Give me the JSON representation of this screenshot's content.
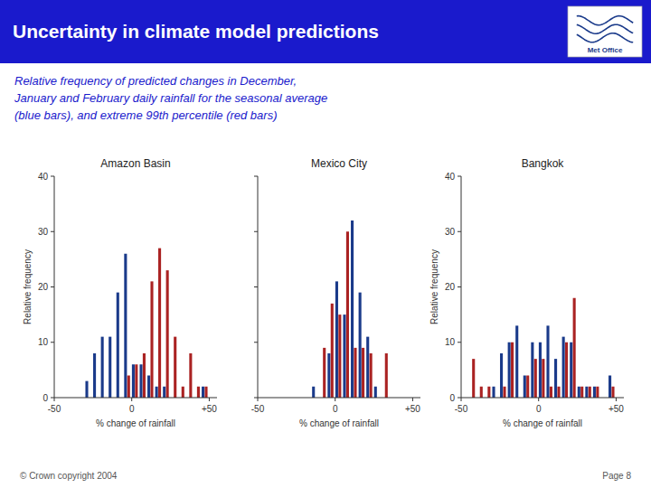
{
  "title": "Uncertainty in climate model predictions",
  "subtitle": "Relative frequency of predicted changes in December,\nJanuary and February daily rainfall for the seasonal average\n(blue bars), and extreme 99th percentile (red bars)",
  "annotations": [
    "Met Office",
    "© Crown copyright 2004",
    "Page 8"
  ],
  "chart_data": [
    {
      "type": "bar",
      "title": "Amazon Basin",
      "xlabel": "% change of rainfall",
      "ylabel": "Relative frequency",
      "x": [
        -40,
        -35,
        -30,
        -25,
        -20,
        -15,
        -10,
        -5,
        0,
        5,
        10,
        15,
        20,
        25,
        30,
        35,
        40,
        45
      ],
      "series": [
        {
          "color": "#1a3a8a",
          "values": [
            0,
            0,
            3,
            8,
            11,
            11,
            19,
            26,
            6,
            6,
            4,
            2,
            2,
            0,
            0,
            0,
            0,
            2
          ]
        },
        {
          "color": "#aa2222",
          "values": [
            0,
            0,
            0,
            0,
            0,
            0,
            0,
            4,
            6,
            8,
            21,
            27,
            23,
            11,
            2,
            8,
            2,
            2
          ]
        }
      ],
      "xlim": [
        -50,
        55
      ],
      "ylim": [
        0,
        40
      ],
      "xticks": [
        -50,
        0,
        {
          "value": 50,
          "label": "+50"
        }
      ],
      "yticks": [
        0,
        10,
        20,
        30,
        40
      ],
      "grid": false
    },
    {
      "type": "bar",
      "title": "Mexico City",
      "xlabel": "% change of rainfall",
      "x": [
        -15,
        -10,
        -5,
        0,
        5,
        10,
        15,
        20,
        25,
        30
      ],
      "series": [
        {
          "color": "#1a3a8a",
          "values": [
            2,
            0,
            8,
            21,
            15,
            32,
            19,
            11,
            2,
            0
          ]
        },
        {
          "color": "#aa2222",
          "values": [
            0,
            9,
            17,
            15,
            30,
            9,
            9,
            8,
            0,
            8
          ]
        }
      ],
      "xlim": [
        -50,
        55
      ],
      "ylim": [
        0,
        40
      ],
      "xticks": [
        -50,
        0,
        {
          "value": 50,
          "label": "+50"
        }
      ],
      "yticks": [
        0,
        10,
        20,
        30,
        40
      ],
      "tick_labels": "x",
      "grid": false
    },
    {
      "type": "bar",
      "title": "Bangkok",
      "xlabel": "% change of rainfall",
      "ylabel": "Relative frequency",
      "x": [
        -45,
        -40,
        -35,
        -30,
        -25,
        -20,
        -15,
        -10,
        -5,
        0,
        5,
        10,
        15,
        20,
        25,
        30,
        35,
        40,
        45
      ],
      "series": [
        {
          "color": "#1a3a8a",
          "values": [
            0,
            0,
            0,
            2,
            8,
            10,
            13,
            4,
            10,
            10,
            13,
            7,
            11,
            10,
            2,
            2,
            2,
            0,
            4
          ]
        },
        {
          "color": "#aa2222",
          "values": [
            7,
            2,
            2,
            0,
            2,
            10,
            0,
            4,
            7,
            7,
            2,
            2,
            10,
            18,
            2,
            2,
            2,
            0,
            2
          ]
        }
      ],
      "xlim": [
        -50,
        55
      ],
      "ylim": [
        0,
        40
      ],
      "xticks": [
        -50,
        0,
        {
          "value": 50,
          "label": "+50"
        }
      ],
      "yticks": [
        0,
        10,
        20,
        30,
        40
      ],
      "grid": false
    }
  ]
}
